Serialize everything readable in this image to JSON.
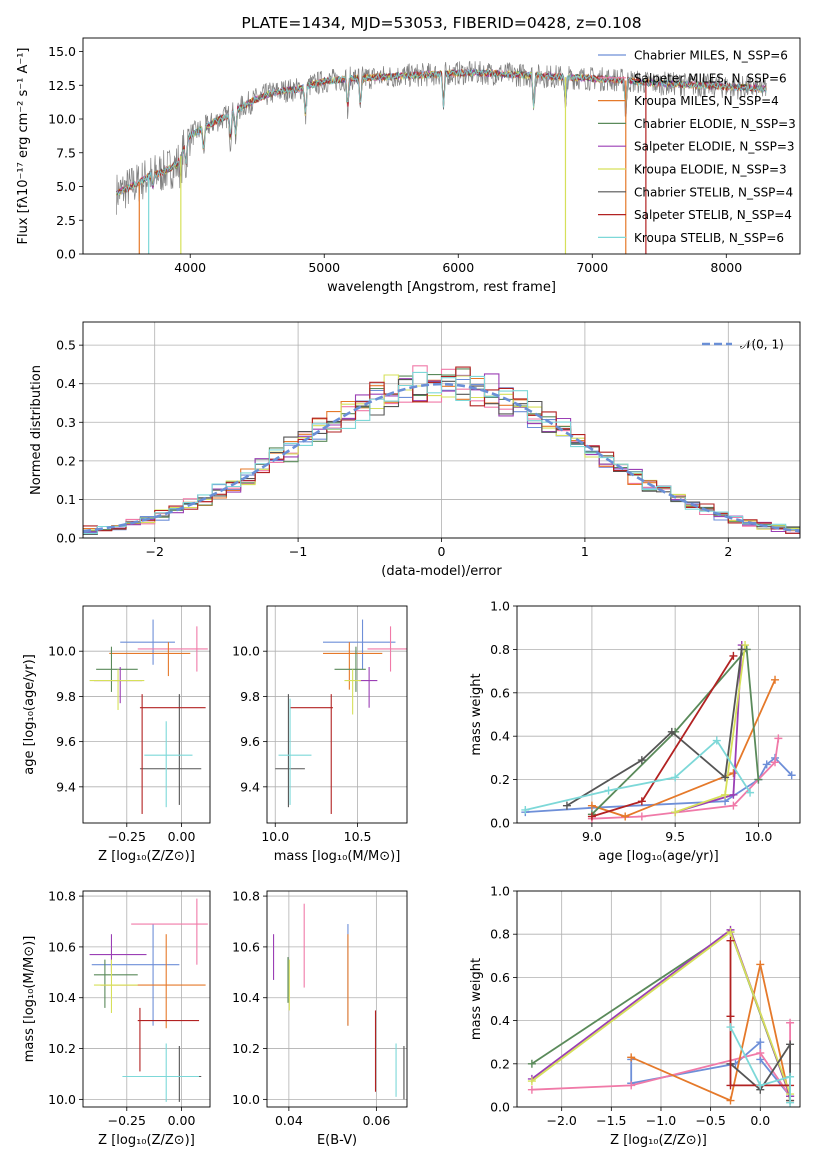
{
  "chart_data": [
    {
      "id": "spectrum",
      "type": "line",
      "title": "PLATE=1434, MJD=53053, FIBERID=0428, z=0.108",
      "xlabel": "wavelength [Angstrom, rest frame]",
      "ylabel": "Flux [fλ10⁻¹⁷ erg cm⁻² s⁻¹ A⁻¹]",
      "xlim": [
        3200,
        8550
      ],
      "ylim": [
        0,
        16
      ],
      "xticks": [
        "4000",
        "5000",
        "6000",
        "7000",
        "8000"
      ],
      "yticks": [
        "0.0",
        "2.5",
        "5.0",
        "7.5",
        "10.0",
        "12.5",
        "15.0"
      ],
      "grid": false,
      "legend_position": "right",
      "series": [
        {
          "name": "Chabrier MILES, N_SSP=6",
          "color": "#6e8fd8"
        },
        {
          "name": "Salpeter MILES, N_SSP=6",
          "color": "#f07aa8"
        },
        {
          "name": "Kroupa MILES, N_SSP=4",
          "color": "#e5792a"
        },
        {
          "name": "Chabrier ELODIE, N_SSP=3",
          "color": "#5a8a5a"
        },
        {
          "name": "Salpeter ELODIE, N_SSP=3",
          "color": "#9b3fb5"
        },
        {
          "name": "Kroupa ELODIE, N_SSP=3",
          "color": "#d6e05a"
        },
        {
          "name": "Chabrier STELIB, N_SSP=4",
          "color": "#555555"
        },
        {
          "name": "Salpeter STELIB, N_SSP=4",
          "color": "#b22222"
        },
        {
          "name": "Kroupa STELIB, N_SSP=6",
          "color": "#7dd8d8"
        }
      ],
      "data_color": "#808080",
      "continuum": {
        "x": [
          3450,
          3600,
          3700,
          3800,
          3900,
          4000,
          4100,
          4200,
          4300,
          4400,
          4500,
          4600,
          4700,
          4800,
          4900,
          5000,
          5200,
          5400,
          5600,
          5800,
          6000,
          6200,
          6400,
          6600,
          6800,
          7000,
          7200,
          7400,
          7600,
          7800,
          8000,
          8200,
          8300
        ],
        "y": [
          4.5,
          5.2,
          5.8,
          6.1,
          6.6,
          8.8,
          9.3,
          9.9,
          10.3,
          11.0,
          11.5,
          11.9,
          12.1,
          12.2,
          12.5,
          12.8,
          13.0,
          13.1,
          13.2,
          13.3,
          13.4,
          13.4,
          13.3,
          13.2,
          13.1,
          13.0,
          12.9,
          12.7,
          12.6,
          12.5,
          12.4,
          12.3,
          12.2
        ]
      },
      "absorption_lines": [
        3720,
        3930,
        3968,
        4100,
        4300,
        4340,
        4860,
        5175,
        5270,
        5890,
        6563,
        6800,
        7250
      ]
    },
    {
      "id": "residuals",
      "type": "histogram",
      "xlabel": "(data-model)/error",
      "ylabel": "Normed distribution",
      "xlim": [
        -2.5,
        2.5
      ],
      "ylim": [
        0,
        0.56
      ],
      "xticks": [
        "−2",
        "−1",
        "0",
        "1",
        "2"
      ],
      "yticks": [
        "0.0",
        "0.1",
        "0.2",
        "0.3",
        "0.4",
        "0.5"
      ],
      "grid": true,
      "legend_position": "top-right",
      "reference": {
        "name": "𝒩(0, 1)",
        "color": "#6a8fd6",
        "style": "dashed"
      },
      "bin_width": 0.1
    },
    {
      "id": "age-vs-Z",
      "type": "errorbar",
      "xlabel": "Z [log₁₀(Z/Z⊙)]",
      "ylabel": "age [log₁₀(age/yr)]",
      "xlim": [
        -0.45,
        0.13
      ],
      "ylim": [
        9.24,
        10.2
      ],
      "xticks": [
        "−0.25",
        "0.00"
      ],
      "ytick_values": [
        9.4,
        9.6,
        9.8,
        10.0
      ],
      "yticks": [
        "9.4",
        "9.6",
        "9.8",
        "10.0"
      ],
      "grid": true,
      "points": [
        {
          "series": "Chabrier MILES",
          "x": -0.13,
          "xerr": [
            0.15,
            0.1
          ],
          "y": 10.04,
          "yerr": [
            0.1,
            0.1
          ]
        },
        {
          "series": "Salpeter MILES",
          "x": 0.07,
          "xerr": [
            0.27,
            0.05
          ],
          "y": 10.01,
          "yerr": [
            0.1,
            0.1
          ]
        },
        {
          "series": "Kroupa MILES",
          "x": -0.06,
          "xerr": [
            0.27,
            0.1
          ],
          "y": 9.99,
          "yerr": [
            0.1,
            0.05
          ]
        },
        {
          "series": "Chabrier ELODIE",
          "x": -0.32,
          "xerr": [
            0.07,
            0.12
          ],
          "y": 9.92,
          "yerr": [
            0.1,
            0.1
          ]
        },
        {
          "series": "Salpeter ELODIE",
          "x": -0.28,
          "xerr": [
            0.12,
            0.1
          ],
          "y": 9.87,
          "yerr": [
            0.1,
            0.06
          ]
        },
        {
          "series": "Kroupa ELODIE",
          "x": -0.29,
          "xerr": [
            0.13,
            0.12
          ],
          "y": 9.87,
          "yerr": [
            0.13,
            0.05
          ]
        },
        {
          "series": "Chabrier STELIB",
          "x": -0.01,
          "xerr": [
            0.18,
            0.1
          ],
          "y": 9.48,
          "yerr": [
            0.16,
            0.33
          ]
        },
        {
          "series": "Salpeter STELIB",
          "x": -0.18,
          "xerr": [
            0.01,
            0.29
          ],
          "y": 9.75,
          "yerr": [
            0.47,
            0.06
          ]
        },
        {
          "series": "Kroupa STELIB",
          "x": -0.07,
          "xerr": [
            0.1,
            0.12
          ],
          "y": 9.54,
          "yerr": [
            0.23,
            0.15
          ]
        }
      ]
    },
    {
      "id": "age-vs-mass",
      "type": "errorbar",
      "xlabel": "mass [log₁₀(M/M⊙)]",
      "ylabel": "",
      "xlim": [
        9.95,
        10.8
      ],
      "ylim": [
        9.24,
        10.2
      ],
      "xtick_values": [
        10.0,
        10.5
      ],
      "xticks": [
        "10.0",
        "10.5"
      ],
      "ytick_values": [
        9.4,
        9.6,
        9.8,
        10.0
      ],
      "yticks": [
        "9.4",
        "9.6",
        "9.8",
        "10.0"
      ],
      "grid": true,
      "points": [
        {
          "series": "Chabrier MILES",
          "x": 10.53,
          "xerr": [
            0.24,
            0.2
          ],
          "y": 10.04,
          "yerr": [
            0.12,
            0.1
          ]
        },
        {
          "series": "Salpeter MILES",
          "x": 10.7,
          "xerr": [
            0.14,
            0.1
          ],
          "y": 10.01,
          "yerr": [
            0.1,
            0.1
          ]
        },
        {
          "series": "Kroupa MILES",
          "x": 10.45,
          "xerr": [
            0.16,
            0.2
          ],
          "y": 9.99,
          "yerr": [
            0.16,
            0.05
          ]
        },
        {
          "series": "Chabrier ELODIE",
          "x": 10.49,
          "xerr": [
            0.13,
            0.06
          ],
          "y": 9.92,
          "yerr": [
            0.1,
            0.1
          ]
        },
        {
          "series": "Salpeter ELODIE",
          "x": 10.57,
          "xerr": [
            0.06,
            0.05
          ],
          "y": 9.87,
          "yerr": [
            0.12,
            0.06
          ]
        },
        {
          "series": "Kroupa ELODIE",
          "x": 10.47,
          "xerr": [
            0.05,
            0.05
          ],
          "y": 9.87,
          "yerr": [
            0.15,
            0.05
          ]
        },
        {
          "series": "Chabrier STELIB",
          "x": 10.08,
          "xerr": [
            0.08,
            0.1
          ],
          "y": 9.48,
          "yerr": [
            0.17,
            0.33
          ]
        },
        {
          "series": "Salpeter STELIB",
          "x": 10.34,
          "xerr": [
            0.25,
            0.01
          ],
          "y": 9.75,
          "yerr": [
            0.47,
            0.06
          ]
        },
        {
          "series": "Kroupa STELIB",
          "x": 10.09,
          "xerr": [
            0.07,
            0.13
          ],
          "y": 9.54,
          "yerr": [
            0.22,
            0.25
          ]
        }
      ]
    },
    {
      "id": "weight-vs-age",
      "type": "line",
      "xlabel": "age [log₁₀(age/yr)]",
      "ylabel": "mass weight",
      "xlim": [
        8.55,
        10.25
      ],
      "ylim": [
        0,
        1
      ],
      "xtick_values": [
        9.0,
        9.5,
        10.0
      ],
      "xticks": [
        "9.0",
        "9.5",
        "10.0"
      ],
      "ytick_values": [
        0,
        0.2,
        0.4,
        0.6,
        0.8,
        1.0
      ],
      "yticks": [
        "0.0",
        "0.2",
        "0.4",
        "0.6",
        "0.8",
        "1.0"
      ],
      "grid": true,
      "series": [
        {
          "series": "Chabrier MILES",
          "x": [
            8.6,
            9.0,
            9.8,
            10.0,
            10.05,
            10.1,
            10.2
          ],
          "y": [
            0.05,
            0.07,
            0.1,
            0.2,
            0.27,
            0.3,
            0.22
          ]
        },
        {
          "series": "Salpeter MILES",
          "x": [
            9.0,
            9.3,
            9.85,
            10.1,
            10.12
          ],
          "y": [
            0.02,
            0.03,
            0.08,
            0.28,
            0.39
          ]
        },
        {
          "series": "Kroupa MILES",
          "x": [
            9.0,
            9.2,
            9.85,
            10.1
          ],
          "y": [
            0.08,
            0.03,
            0.23,
            0.66
          ]
        },
        {
          "series": "Chabrier ELODIE",
          "x": [
            9.0,
            9.5,
            9.93,
            10.0
          ],
          "y": [
            0.04,
            0.42,
            0.8,
            0.2
          ]
        },
        {
          "series": "Salpeter ELODIE",
          "x": [
            9.5,
            9.85,
            9.9
          ],
          "y": [
            0.05,
            0.13,
            0.82
          ]
        },
        {
          "series": "Kroupa ELODIE",
          "x": [
            9.5,
            9.8,
            9.92
          ],
          "y": [
            0.05,
            0.13,
            0.82
          ]
        },
        {
          "series": "Chabrier STELIB",
          "x": [
            8.85,
            9.3,
            9.48,
            9.8,
            9.9
          ],
          "y": [
            0.08,
            0.29,
            0.42,
            0.21,
            0.8
          ]
        },
        {
          "series": "Salpeter STELIB",
          "x": [
            9.0,
            9.3,
            9.85
          ],
          "y": [
            0.03,
            0.1,
            0.77
          ]
        },
        {
          "series": "Kroupa STELIB",
          "x": [
            8.6,
            9.1,
            9.5,
            9.75,
            9.95
          ],
          "y": [
            0.06,
            0.15,
            0.21,
            0.38,
            0.14
          ]
        }
      ]
    },
    {
      "id": "mass-vs-Z",
      "type": "errorbar",
      "xlabel": "Z [log₁₀(Z/Z⊙)]",
      "ylabel": "mass [log₁₀(M/M⊙)]",
      "xlim": [
        -0.45,
        0.13
      ],
      "ylim": [
        9.97,
        10.82
      ],
      "xtick_values": [
        -0.25,
        0.0
      ],
      "xticks": [
        "−0.25",
        "0.00"
      ],
      "ytick_values": [
        10.0,
        10.2,
        10.4,
        10.6,
        10.8
      ],
      "yticks": [
        "10.0",
        "10.2",
        "10.4",
        "10.6",
        "10.8"
      ],
      "grid": true,
      "points": [
        {
          "series": "Chabrier MILES",
          "x": -0.13,
          "xerr": [
            0.28,
            0.12
          ],
          "y": 10.53,
          "yerr": [
            0.24,
            0.16
          ]
        },
        {
          "series": "Salpeter MILES",
          "x": 0.07,
          "xerr": [
            0.3,
            0.05
          ],
          "y": 10.69,
          "yerr": [
            0.16,
            0.1
          ]
        },
        {
          "series": "Kroupa MILES",
          "x": -0.07,
          "xerr": [
            0.3,
            0.18
          ],
          "y": 10.45,
          "yerr": [
            0.17,
            0.2
          ]
        },
        {
          "series": "Chabrier ELODIE",
          "x": -0.35,
          "xerr": [
            0.05,
            0.15
          ],
          "y": 10.49,
          "yerr": [
            0.13,
            0.06
          ]
        },
        {
          "series": "Salpeter ELODIE",
          "x": -0.32,
          "xerr": [
            0.1,
            0.16
          ],
          "y": 10.57,
          "yerr": [
            0.07,
            0.08
          ]
        },
        {
          "series": "Kroupa ELODIE",
          "x": -0.32,
          "xerr": [
            0.08,
            0.12
          ],
          "y": 10.45,
          "yerr": [
            0.11,
            0.1
          ]
        },
        {
          "series": "Chabrier STELIB",
          "x": -0.01,
          "xerr": [
            0.2,
            0.1
          ],
          "y": 10.09,
          "yerr": [
            0.1,
            0.12
          ]
        },
        {
          "series": "Salpeter STELIB",
          "x": -0.19,
          "xerr": [
            0.01,
            0.27
          ],
          "y": 10.31,
          "yerr": [
            0.2,
            0.05
          ]
        },
        {
          "series": "Kroupa STELIB",
          "x": -0.07,
          "xerr": [
            0.2,
            0.15
          ],
          "y": 10.09,
          "yerr": [
            0.1,
            0.13
          ]
        }
      ]
    },
    {
      "id": "mass-vs-EBV",
      "type": "errorbar",
      "xlabel": "E(B-V)",
      "ylabel": "",
      "xlim": [
        0.035,
        0.067
      ],
      "ylim": [
        9.97,
        10.82
      ],
      "xtick_values": [
        0.04,
        0.06
      ],
      "xticks": [
        "0.04",
        "0.06"
      ],
      "ytick_values": [
        10.0,
        10.2,
        10.4,
        10.6,
        10.8
      ],
      "yticks": [
        "10.0",
        "10.2",
        "10.4",
        "10.6",
        "10.8"
      ],
      "grid": true,
      "points": [
        {
          "series": "Chabrier MILES",
          "x": 0.0535,
          "y": 10.53,
          "yerr": [
            0.24,
            0.16
          ]
        },
        {
          "series": "Salpeter MILES",
          "x": 0.0435,
          "y": 10.61,
          "yerr": [
            0.17,
            0.16
          ]
        },
        {
          "series": "Kroupa MILES",
          "x": 0.0535,
          "y": 10.46,
          "yerr": [
            0.17,
            0.19
          ]
        },
        {
          "series": "Chabrier ELODIE",
          "x": 0.0398,
          "y": 10.49,
          "yerr": [
            0.11,
            0.07
          ]
        },
        {
          "series": "Salpeter ELODIE",
          "x": 0.0365,
          "y": 10.57,
          "yerr": [
            0.1,
            0.08
          ]
        },
        {
          "series": "Kroupa ELODIE",
          "x": 0.0401,
          "y": 10.45,
          "yerr": [
            0.1,
            0.1
          ]
        },
        {
          "series": "Chabrier STELIB",
          "x": 0.0663,
          "y": 10.1,
          "yerr": [
            0.1,
            0.11
          ]
        },
        {
          "series": "Salpeter STELIB",
          "x": 0.0598,
          "y": 10.18,
          "yerr": [
            0.15,
            0.17
          ]
        },
        {
          "series": "Kroupa STELIB",
          "x": 0.0645,
          "y": 10.11,
          "yerr": [
            0.1,
            0.11
          ]
        }
      ]
    },
    {
      "id": "weight-vs-Z",
      "type": "line",
      "xlabel": "Z [log₁₀(Z/Z⊙)]",
      "ylabel": "mass weight",
      "xlim": [
        -2.45,
        0.4
      ],
      "ylim": [
        0,
        1
      ],
      "xtick_values": [
        -2.0,
        -1.5,
        -1.0,
        -0.5,
        0.0
      ],
      "xticks": [
        "−2.0",
        "−1.5",
        "−1.0",
        "−0.5",
        "0.0"
      ],
      "ytick_values": [
        0,
        0.2,
        0.4,
        0.6,
        0.8,
        1.0
      ],
      "yticks": [
        "0.0",
        "0.2",
        "0.4",
        "0.6",
        "0.8",
        "1.0"
      ],
      "grid": true,
      "series": [
        {
          "series": "Chabrier MILES",
          "x": [
            -1.3,
            -1.3,
            -0.25,
            0.0,
            0.0,
            0.3
          ],
          "y": [
            0.22,
            0.11,
            0.2,
            0.3,
            0.22,
            0.05
          ]
        },
        {
          "series": "Salpeter MILES",
          "x": [
            -2.3,
            -1.3,
            0.0,
            0.3,
            0.3
          ],
          "y": [
            0.08,
            0.1,
            0.25,
            0.05,
            0.39
          ]
        },
        {
          "series": "Kroupa MILES",
          "x": [
            -1.3,
            -0.3,
            0.0,
            0.3
          ],
          "y": [
            0.23,
            0.03,
            0.66,
            0.03
          ]
        },
        {
          "series": "Chabrier ELODIE",
          "x": [
            -2.3,
            -0.3,
            0.3
          ],
          "y": [
            0.2,
            0.81,
            0.05
          ]
        },
        {
          "series": "Salpeter ELODIE",
          "x": [
            -2.3,
            -0.3,
            0.3
          ],
          "y": [
            0.13,
            0.82,
            0.05
          ]
        },
        {
          "series": "Kroupa ELODIE",
          "x": [
            -2.3,
            -0.3,
            0.3
          ],
          "y": [
            0.12,
            0.81,
            0.06
          ]
        },
        {
          "series": "Chabrier STELIB",
          "x": [
            -0.3,
            0.0,
            0.3,
            0.3
          ],
          "y": [
            0.2,
            0.08,
            0.29,
            0.03
          ]
        },
        {
          "series": "Salpeter STELIB",
          "x": [
            -0.3,
            -0.3,
            -0.3,
            0.3
          ],
          "y": [
            0.77,
            0.42,
            0.1,
            0.1
          ]
        },
        {
          "series": "Kroupa STELIB",
          "x": [
            -0.3,
            0.0,
            0.3,
            0.3
          ],
          "y": [
            0.37,
            0.1,
            0.14,
            0.02
          ]
        }
      ]
    }
  ]
}
